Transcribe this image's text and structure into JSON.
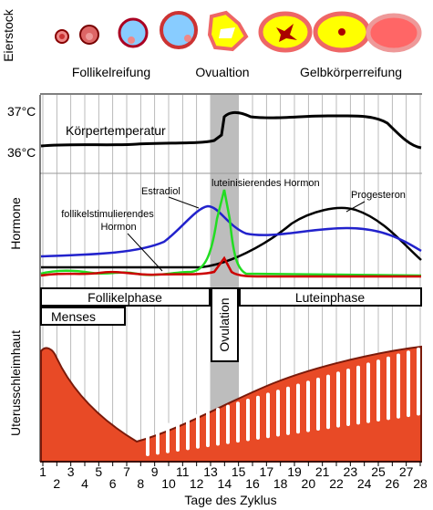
{
  "ovary": {
    "label": "Eierstock",
    "stages": [
      "Follikelreifung",
      "Ovualtion",
      "Gelbkörperreifung"
    ]
  },
  "temperature": {
    "ticks": [
      "37°C",
      "36°C"
    ],
    "label": "Körpertemperatur"
  },
  "hormones": {
    "label": "Hormone",
    "estradiol": "Estradiol",
    "lh": "luteinisierendes Hormon",
    "fsh": [
      "follikelstimulierendes",
      "Hormon"
    ],
    "progesterone": "Progesteron"
  },
  "phases": {
    "follicular": "Follikelphase",
    "luteal": "Luteinphase",
    "menses": "Menses",
    "ovulation": "Ovulation"
  },
  "endometrium": {
    "label": "Uterusschleimhaut"
  },
  "axis": {
    "days": [
      1,
      2,
      3,
      4,
      5,
      6,
      7,
      8,
      9,
      10,
      11,
      12,
      13,
      14,
      15,
      16,
      17,
      18,
      19,
      20,
      21,
      22,
      23,
      24,
      25,
      26,
      27,
      28
    ],
    "label": "Tage des Zyklus"
  }
}
